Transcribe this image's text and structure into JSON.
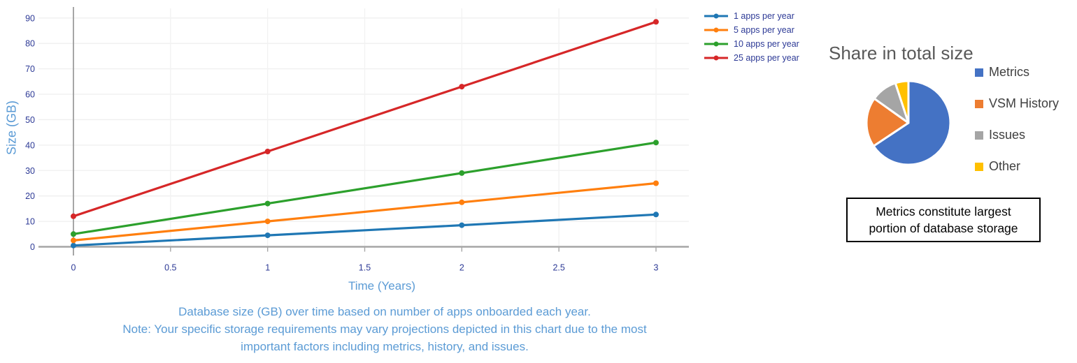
{
  "styles": {
    "tick_label_color": "#2d3a96",
    "axis_title_color": "#5b9bd5",
    "caption_color": "#5b9bd5",
    "axis_line_color": "#a6a6a6",
    "grid_color": "#efefef",
    "pie_title_color": "#595959",
    "pie_legend_text_color": "#404040",
    "background": "#ffffff"
  },
  "chart_data": [
    {
      "type": "line",
      "xlabel": "Time (Years)",
      "ylabel": "Size (GB)",
      "x": [
        0,
        1,
        2,
        3
      ],
      "series": [
        {
          "name": "1 apps per year",
          "color": "#1f77b4",
          "values": [
            0.5,
            4.5,
            8.5,
            12.7
          ]
        },
        {
          "name": "5 apps per year",
          "color": "#ff7f0e",
          "values": [
            2.5,
            10,
            17.5,
            25
          ]
        },
        {
          "name": "10 apps per year",
          "color": "#2ca02c",
          "values": [
            5,
            17,
            29,
            41
          ]
        },
        {
          "name": "25 apps per year",
          "color": "#d62728",
          "values": [
            12,
            37.5,
            63,
            88.5
          ]
        }
      ],
      "xlim": [
        0,
        3.17
      ],
      "ylim": [
        0,
        93
      ],
      "x_ticks": [
        "0",
        "0.5",
        "1",
        "1.5",
        "2",
        "2.5",
        "3"
      ],
      "y_ticks": [
        "0",
        "10",
        "20",
        "30",
        "40",
        "50",
        "60",
        "70",
        "80",
        "90"
      ],
      "grid": true,
      "legend_position": "top-right",
      "caption": [
        "Database size (GB) over time based on number of apps onboarded each year.",
        "Note: Your specific storage requirements may vary projections depicted in this chart due to the most",
        "important factors including metrics, history, and issues."
      ]
    },
    {
      "type": "pie",
      "title": "Share in total size",
      "slices": [
        {
          "label": "Metrics",
          "color": "#4472c4",
          "value": 65
        },
        {
          "label": "VSM History",
          "color": "#ed7d31",
          "value": 19
        },
        {
          "label": "Issues",
          "color": "#a5a5a5",
          "value": 10
        },
        {
          "label": "Other",
          "color": "#ffc000",
          "value": 5
        }
      ],
      "start_angle_deg": 0,
      "legend_position": "right",
      "annotation": [
        "Metrics constitute largest",
        "portion of database storage"
      ]
    }
  ]
}
